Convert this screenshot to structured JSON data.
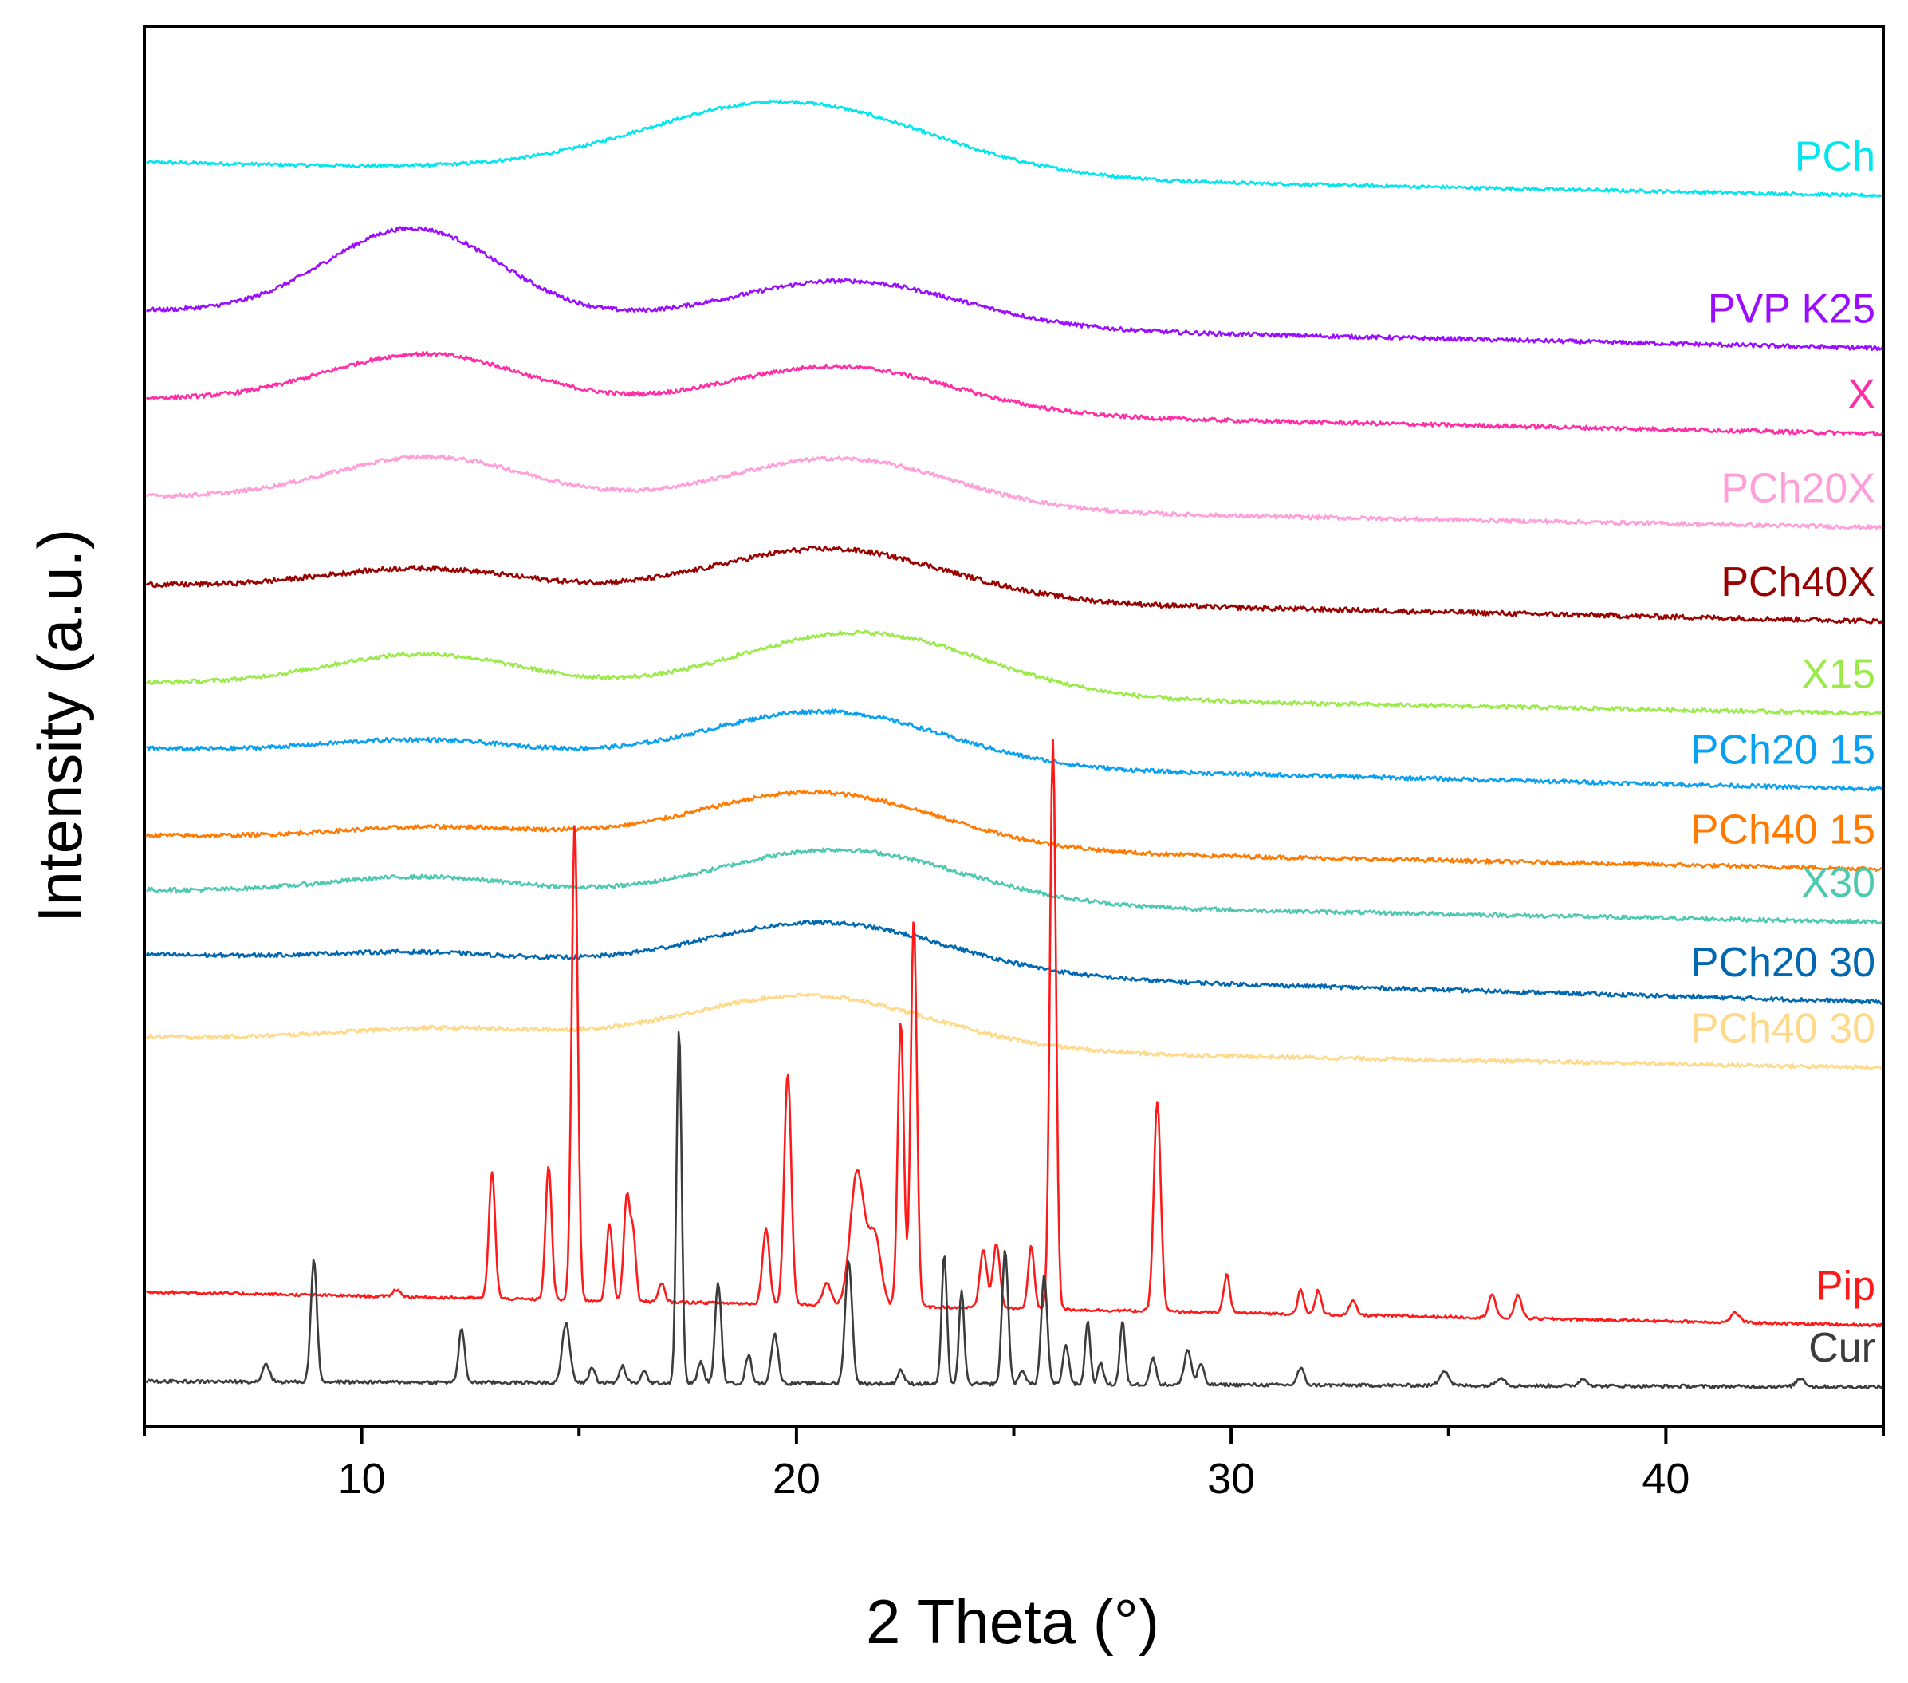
{
  "chart_data": {
    "type": "line",
    "title": "",
    "xlabel": "2 Theta (°)",
    "ylabel": "Intensity (a.u.)",
    "xlim": [
      5,
      45
    ],
    "ylim": [
      0,
      100
    ],
    "xticks": [
      10,
      20,
      30,
      40
    ],
    "grid": false,
    "legend": "inline labels at right end of each trace",
    "series": [
      {
        "name": "PCh",
        "color": "#00e5ee",
        "base": 90.3,
        "drift": -2.4,
        "noise": 0.12,
        "peaks": [
          [
            19.8,
            5.2,
            3.2
          ]
        ]
      },
      {
        "name": "PVP K25",
        "color": "#9a0dff",
        "base": 79.7,
        "drift": -2.7,
        "noise": 0.15,
        "peaks": [
          [
            11.2,
            6.3,
            2.0
          ],
          [
            21.2,
            3.2,
            2.6
          ]
        ]
      },
      {
        "name": "X",
        "color": "#ff2ea6",
        "base": 73.4,
        "drift": -2.5,
        "noise": 0.15,
        "peaks": [
          [
            11.5,
            3.6,
            2.3
          ],
          [
            21.0,
            3.3,
            2.6
          ]
        ]
      },
      {
        "name": "PCh20X",
        "color": "#ff9ed8",
        "base": 66.4,
        "drift": -2.2,
        "noise": 0.15,
        "peaks": [
          [
            11.6,
            3.2,
            2.3
          ],
          [
            21.0,
            3.6,
            2.6
          ]
        ]
      },
      {
        "name": "PCh40X",
        "color": "#990000",
        "base": 60.1,
        "drift": -2.6,
        "noise": 0.18,
        "peaks": [
          [
            11.5,
            1.6,
            2.3
          ],
          [
            20.8,
            3.6,
            2.7
          ]
        ]
      },
      {
        "name": "X15",
        "color": "#9aea4a",
        "base": 53.1,
        "drift": -2.2,
        "noise": 0.15,
        "peaks": [
          [
            11.5,
            2.4,
            2.3
          ],
          [
            21.5,
            4.5,
            2.8
          ]
        ]
      },
      {
        "name": "PCh20 15",
        "color": "#0aa0f0",
        "base": 48.4,
        "drift": -2.9,
        "noise": 0.15,
        "peaks": [
          [
            11.5,
            1.1,
            2.3
          ],
          [
            20.7,
            3.8,
            2.7
          ]
        ]
      },
      {
        "name": "PCh40 15",
        "color": "#ff7a00",
        "base": 42.2,
        "drift": -2.4,
        "noise": 0.15,
        "peaks": [
          [
            12.0,
            1.0,
            2.5
          ],
          [
            20.5,
            4.0,
            2.8
          ]
        ]
      },
      {
        "name": "X30",
        "color": "#4ec9b0",
        "base": 38.3,
        "drift": -2.3,
        "noise": 0.15,
        "peaks": [
          [
            11.5,
            1.3,
            2.3
          ],
          [
            21.0,
            3.8,
            2.8
          ]
        ]
      },
      {
        "name": "PCh20 30",
        "color": "#0068b0",
        "base": 33.7,
        "drift": -3.4,
        "noise": 0.15,
        "peaks": [
          [
            11.5,
            0.7,
            2.3
          ],
          [
            20.7,
            3.6,
            2.8
          ]
        ]
      },
      {
        "name": "PCh40 30",
        "color": "#ffd98a",
        "base": 27.8,
        "drift": -2.2,
        "noise": 0.15,
        "peaks": [
          [
            12.0,
            1.0,
            2.5
          ],
          [
            20.3,
            3.8,
            2.8
          ]
        ]
      },
      {
        "name": "Pip",
        "color": "#ff1a1a",
        "base": 9.6,
        "drift": -2.4,
        "noise": 0.1,
        "peaks": [
          [
            10.8,
            0.5,
            0.09
          ],
          [
            12.9,
            0.3,
            0.07
          ],
          [
            13.0,
            9.0,
            0.07
          ],
          [
            14.3,
            9.6,
            0.07
          ],
          [
            14.9,
            34.2,
            0.07
          ],
          [
            15.7,
            5.5,
            0.07
          ],
          [
            16.1,
            7.6,
            0.07
          ],
          [
            16.25,
            4.5,
            0.06
          ],
          [
            16.9,
            1.3,
            0.07
          ],
          [
            19.3,
            5.4,
            0.08
          ],
          [
            19.8,
            16.6,
            0.08
          ],
          [
            20.7,
            1.6,
            0.09
          ],
          [
            21.4,
            9.6,
            0.16
          ],
          [
            21.8,
            5.0,
            0.14
          ],
          [
            22.4,
            20.4,
            0.07
          ],
          [
            22.7,
            27.8,
            0.07
          ],
          [
            24.3,
            4.2,
            0.08
          ],
          [
            24.6,
            4.6,
            0.08
          ],
          [
            25.4,
            4.5,
            0.07
          ],
          [
            25.9,
            40.6,
            0.07
          ],
          [
            28.3,
            15.0,
            0.08
          ],
          [
            29.9,
            2.7,
            0.07
          ],
          [
            31.6,
            1.7,
            0.07
          ],
          [
            32.0,
            1.7,
            0.07
          ],
          [
            32.8,
            1.0,
            0.08
          ],
          [
            36.0,
            1.7,
            0.08
          ],
          [
            36.6,
            1.7,
            0.08
          ],
          [
            41.6,
            0.7,
            0.1
          ]
        ]
      },
      {
        "name": "Cur",
        "color": "#3c3c3c",
        "base": 3.2,
        "drift": -0.4,
        "noise": 0.12,
        "peaks": [
          [
            7.8,
            1.3,
            0.08
          ],
          [
            8.9,
            8.8,
            0.07
          ],
          [
            12.3,
            3.8,
            0.07
          ],
          [
            14.7,
            4.2,
            0.09
          ],
          [
            15.3,
            1.1,
            0.07
          ],
          [
            16.0,
            1.2,
            0.07
          ],
          [
            16.5,
            0.8,
            0.07
          ],
          [
            17.3,
            25.3,
            0.06
          ],
          [
            17.8,
            1.5,
            0.07
          ],
          [
            18.2,
            7.2,
            0.07
          ],
          [
            18.9,
            2.0,
            0.07
          ],
          [
            19.5,
            3.5,
            0.08
          ],
          [
            21.2,
            8.8,
            0.08
          ],
          [
            22.4,
            1.0,
            0.07
          ],
          [
            23.4,
            9.2,
            0.06
          ],
          [
            23.8,
            6.6,
            0.06
          ],
          [
            24.8,
            9.6,
            0.07
          ],
          [
            25.2,
            1.0,
            0.07
          ],
          [
            25.7,
            7.8,
            0.07
          ],
          [
            26.2,
            2.8,
            0.07
          ],
          [
            26.7,
            4.5,
            0.06
          ],
          [
            27.0,
            1.6,
            0.06
          ],
          [
            27.5,
            4.5,
            0.06
          ],
          [
            28.2,
            1.9,
            0.07
          ],
          [
            29.0,
            2.5,
            0.08
          ],
          [
            29.3,
            1.5,
            0.07
          ],
          [
            31.6,
            1.2,
            0.08
          ],
          [
            34.9,
            1.1,
            0.1
          ],
          [
            36.2,
            0.6,
            0.1
          ],
          [
            38.1,
            0.5,
            0.1
          ],
          [
            43.1,
            0.6,
            0.1
          ]
        ]
      }
    ]
  }
}
